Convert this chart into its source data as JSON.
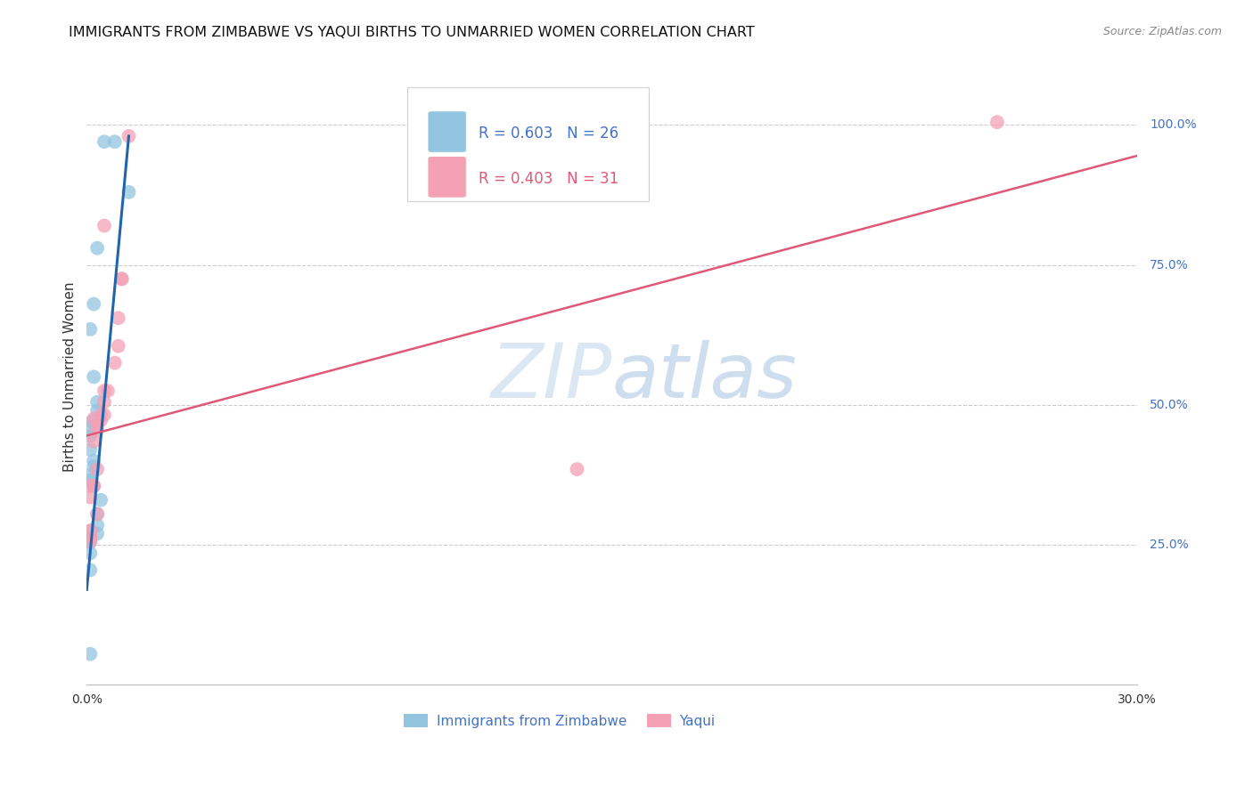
{
  "title": "IMMIGRANTS FROM ZIMBABWE VS YAQUI BIRTHS TO UNMARRIED WOMEN CORRELATION CHART",
  "source": "Source: ZipAtlas.com",
  "ylabel": "Births to Unmarried Women",
  "xlim": [
    0.0,
    0.3
  ],
  "ylim": [
    0.0,
    1.1
  ],
  "xticks": [
    0.0,
    0.03,
    0.06,
    0.09,
    0.12,
    0.15,
    0.18,
    0.21,
    0.24,
    0.27,
    0.3
  ],
  "xtick_labels": [
    "0.0%",
    "",
    "",
    "",
    "",
    "",
    "",
    "",
    "",
    "",
    "30.0%"
  ],
  "ytick_positions": [
    0.25,
    0.5,
    0.75,
    1.0
  ],
  "ytick_labels": [
    "25.0%",
    "50.0%",
    "75.0%",
    "100.0%"
  ],
  "blue_color": "#93c4e0",
  "pink_color": "#f4a0b5",
  "blue_line_color": "#2166ac",
  "pink_line_color": "#e05878",
  "legend_blue_R": "R = 0.603",
  "legend_blue_N": "N = 26",
  "legend_pink_R": "R = 0.403",
  "legend_pink_N": "N = 31",
  "watermark_zip": "ZIP",
  "watermark_atlas": "atlas",
  "legend_label_blue": "Immigrants from Zimbabwe",
  "legend_label_pink": "Yaqui",
  "blue_scatter_x": [
    0.005,
    0.012,
    0.008,
    0.003,
    0.002,
    0.001,
    0.002,
    0.003,
    0.003,
    0.0015,
    0.001,
    0.001,
    0.001,
    0.002,
    0.002,
    0.001,
    0.001,
    0.004,
    0.003,
    0.003,
    0.003,
    0.001,
    0.001,
    0.001,
    0.001,
    0.001
  ],
  "blue_scatter_y": [
    0.97,
    0.88,
    0.97,
    0.78,
    0.68,
    0.635,
    0.55,
    0.505,
    0.49,
    0.47,
    0.46,
    0.445,
    0.42,
    0.4,
    0.39,
    0.375,
    0.365,
    0.33,
    0.305,
    0.285,
    0.27,
    0.26,
    0.255,
    0.235,
    0.205,
    0.055
  ],
  "pink_scatter_x": [
    0.012,
    0.005,
    0.01,
    0.01,
    0.009,
    0.009,
    0.008,
    0.006,
    0.005,
    0.005,
    0.005,
    0.004,
    0.004,
    0.003,
    0.003,
    0.003,
    0.003,
    0.002,
    0.002,
    0.002,
    0.002,
    0.001,
    0.001,
    0.001,
    0.001,
    0.001,
    0.001,
    0.001,
    0.001,
    0.14,
    0.26
  ],
  "pink_scatter_y": [
    0.98,
    0.82,
    0.725,
    0.725,
    0.655,
    0.605,
    0.575,
    0.525,
    0.525,
    0.505,
    0.482,
    0.482,
    0.472,
    0.465,
    0.455,
    0.385,
    0.305,
    0.475,
    0.435,
    0.355,
    0.355,
    0.355,
    0.335,
    0.275,
    0.275,
    0.265,
    0.265,
    0.265,
    0.255,
    0.385,
    1.005
  ],
  "blue_line_x": [
    0.0,
    0.012
  ],
  "blue_line_y": [
    0.17,
    0.98
  ],
  "pink_line_x": [
    0.0,
    0.3
  ],
  "pink_line_y": [
    0.445,
    0.945
  ],
  "title_fontsize": 11.5,
  "axis_label_fontsize": 11,
  "tick_fontsize": 10,
  "legend_fontsize": 12,
  "background_color": "#ffffff",
  "grid_color": "#cccccc",
  "text_color": "#333333",
  "blue_text_color": "#4472c4",
  "pink_text_color": "#e05878"
}
